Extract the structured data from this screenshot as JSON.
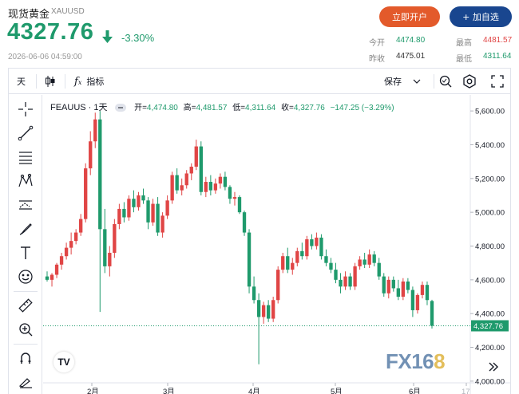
{
  "quote": {
    "name": "现货黄金",
    "symbol": "XAUUSD",
    "price": "4327.76",
    "change_pct": "-3.30%",
    "time": "2026-06-06 04:59:00",
    "open_btn": "立即开户",
    "watch_btn": "+ 加自选",
    "stats": {
      "open_label": "今开",
      "open": "4474.80",
      "high_label": "最高",
      "high": "4481.57",
      "prev_label": "昨收",
      "prev": "4475.01",
      "low_label": "最低",
      "low": "4311.64"
    }
  },
  "toolbar": {
    "interval": "天",
    "indicators": "指标",
    "save": "保存"
  },
  "legend": {
    "symbol": "FEAUUS · 1天",
    "open_label": "开=",
    "open": "4,474.80",
    "high_label": "高=",
    "high": "4,481.57",
    "low_label": "低=",
    "low": "4,311.64",
    "close_label": "收=",
    "close": "4,327.76",
    "change": "−147.25 (−3.29%)"
  },
  "watermark": {
    "part1": "FX16",
    "part2": "8"
  },
  "colors": {
    "up": "#e04545",
    "down": "#1f9a6c",
    "accent_orange": "#e35a2b",
    "accent_blue": "#19468f"
  },
  "chart_data": {
    "type": "candlestick",
    "y_ticks": [
      "5,600.00",
      "5,400.00",
      "5,200.00",
      "5,000.00",
      "4,800.00",
      "4,600.00",
      "4,400.00",
      "4,200.00",
      "4,000.00"
    ],
    "y_tick_values": [
      5600,
      5400,
      5200,
      5000,
      4800,
      4600,
      4400,
      4200,
      4000
    ],
    "ylim": [
      3990,
      5695
    ],
    "x_ticks": [
      "2月",
      "3月",
      "4月",
      "5月",
      "6月",
      "17"
    ],
    "last_price_label": "4,327.76",
    "last_price": 4327.76,
    "candles": [
      [
        4620,
        4650,
        4590,
        4600
      ],
      [
        4600,
        4640,
        4560,
        4630
      ],
      [
        4630,
        4700,
        4610,
        4690
      ],
      [
        4690,
        4760,
        4660,
        4740
      ],
      [
        4740,
        4820,
        4720,
        4790
      ],
      [
        4790,
        4880,
        4750,
        4830
      ],
      [
        4830,
        4900,
        4810,
        4880
      ],
      [
        4880,
        4990,
        4860,
        4960
      ],
      [
        4960,
        5290,
        4940,
        5260
      ],
      [
        5260,
        5480,
        5220,
        5420
      ],
      [
        5420,
        5590,
        5380,
        5550
      ],
      [
        5550,
        5600,
        4410,
        4900
      ],
      [
        4900,
        5020,
        4640,
        4680
      ],
      [
        4680,
        4800,
        4620,
        4760
      ],
      [
        4760,
        4960,
        4730,
        4930
      ],
      [
        4930,
        5050,
        4900,
        5020
      ],
      [
        5020,
        5060,
        4940,
        4970
      ],
      [
        4970,
        5100,
        4950,
        5080
      ],
      [
        5080,
        5130,
        5000,
        5030
      ],
      [
        5030,
        5120,
        5010,
        5100
      ],
      [
        5100,
        5140,
        5050,
        5070
      ],
      [
        5070,
        5090,
        4900,
        4940
      ],
      [
        4940,
        5080,
        4920,
        5050
      ],
      [
        5050,
        5090,
        4860,
        4880
      ],
      [
        4880,
        5000,
        4850,
        4980
      ],
      [
        4980,
        5100,
        4960,
        5070
      ],
      [
        5070,
        5240,
        5050,
        5220
      ],
      [
        5220,
        5260,
        5110,
        5130
      ],
      [
        5130,
        5200,
        5100,
        5160
      ],
      [
        5160,
        5250,
        5140,
        5230
      ],
      [
        5230,
        5290,
        5190,
        5270
      ],
      [
        5270,
        5430,
        5250,
        5390
      ],
      [
        5390,
        5420,
        5100,
        5120
      ],
      [
        5120,
        5210,
        5090,
        5180
      ],
      [
        5180,
        5220,
        5100,
        5130
      ],
      [
        5130,
        5200,
        5110,
        5170
      ],
      [
        5170,
        5230,
        5140,
        5210
      ],
      [
        5210,
        5240,
        5130,
        5150
      ],
      [
        5150,
        5160,
        5050,
        5080
      ],
      [
        5080,
        5120,
        5040,
        5090
      ],
      [
        5090,
        5100,
        4990,
        5000
      ],
      [
        5000,
        5010,
        4860,
        4880
      ],
      [
        4880,
        4900,
        4520,
        4560
      ],
      [
        4560,
        4620,
        4460,
        4480
      ],
      [
        4480,
        4520,
        4100,
        4380
      ],
      [
        4380,
        4470,
        4340,
        4450
      ],
      [
        4450,
        4480,
        4350,
        4370
      ],
      [
        4370,
        4500,
        4350,
        4480
      ],
      [
        4480,
        4680,
        4460,
        4660
      ],
      [
        4660,
        4760,
        4640,
        4740
      ],
      [
        4740,
        4790,
        4640,
        4660
      ],
      [
        4660,
        4730,
        4630,
        4700
      ],
      [
        4700,
        4790,
        4680,
        4770
      ],
      [
        4770,
        4820,
        4720,
        4740
      ],
      [
        4740,
        4860,
        4720,
        4840
      ],
      [
        4840,
        4870,
        4780,
        4800
      ],
      [
        4800,
        4880,
        4780,
        4850
      ],
      [
        4850,
        4870,
        4720,
        4740
      ],
      [
        4740,
        4780,
        4680,
        4700
      ],
      [
        4700,
        4730,
        4640,
        4660
      ],
      [
        4660,
        4700,
        4580,
        4600
      ],
      [
        4600,
        4640,
        4520,
        4560
      ],
      [
        4560,
        4650,
        4540,
        4620
      ],
      [
        4620,
        4640,
        4540,
        4560
      ],
      [
        4560,
        4700,
        4540,
        4680
      ],
      [
        4680,
        4740,
        4660,
        4720
      ],
      [
        4720,
        4760,
        4670,
        4690
      ],
      [
        4690,
        4780,
        4670,
        4750
      ],
      [
        4750,
        4770,
        4680,
        4700
      ],
      [
        4700,
        4730,
        4600,
        4620
      ],
      [
        4620,
        4640,
        4500,
        4520
      ],
      [
        4520,
        4620,
        4490,
        4600
      ],
      [
        4600,
        4620,
        4530,
        4550
      ],
      [
        4550,
        4600,
        4480,
        4500
      ],
      [
        4500,
        4610,
        4480,
        4590
      ],
      [
        4590,
        4610,
        4520,
        4540
      ],
      [
        4540,
        4560,
        4380,
        4420
      ],
      [
        4420,
        4520,
        4400,
        4510
      ],
      [
        4510,
        4590,
        4490,
        4570
      ],
      [
        4570,
        4590,
        4450,
        4480
      ],
      [
        4474.8,
        4481.57,
        4311.64,
        4327.76
      ]
    ]
  }
}
